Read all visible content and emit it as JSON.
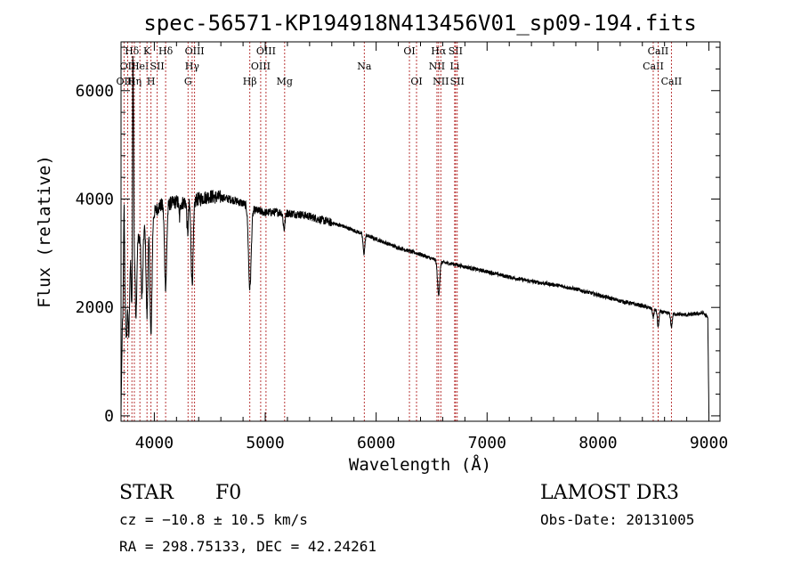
{
  "chart_data": {
    "type": "line",
    "title": "spec-56571-KP194918N413456V01_sp09-194.fits",
    "xlabel": "Wavelength (Å)",
    "ylabel": "Flux (relative)",
    "xlim": [
      3700,
      9100
    ],
    "ylim": [
      -100,
      6900
    ],
    "xticks": [
      4000,
      5000,
      6000,
      7000,
      8000,
      9000
    ],
    "xtick_labels": [
      "4000",
      "5000",
      "6000",
      "7000",
      "8000",
      "9000"
    ],
    "yticks": [
      0,
      2000,
      4000,
      6000
    ],
    "ytick_labels": [
      "0",
      "2000",
      "4000",
      "6000"
    ],
    "continuum": [
      [
        3700,
        50
      ],
      [
        3712,
        1700
      ],
      [
        3730,
        2100
      ],
      [
        3760,
        2500
      ],
      [
        3790,
        3000
      ],
      [
        3820,
        3100
      ],
      [
        3860,
        3300
      ],
      [
        3900,
        3450
      ],
      [
        3950,
        3600
      ],
      [
        4000,
        3750
      ],
      [
        4050,
        3880
      ],
      [
        4100,
        3900
      ],
      [
        4150,
        3920
      ],
      [
        4200,
        3950
      ],
      [
        4250,
        3930
      ],
      [
        4300,
        3950
      ],
      [
        4400,
        4000
      ],
      [
        4500,
        4050
      ],
      [
        4600,
        4030
      ],
      [
        4700,
        3990
      ],
      [
        4800,
        3920
      ],
      [
        4900,
        3800
      ],
      [
        5000,
        3750
      ],
      [
        5100,
        3760
      ],
      [
        5200,
        3740
      ],
      [
        5300,
        3720
      ],
      [
        5400,
        3680
      ],
      [
        5500,
        3620
      ],
      [
        5600,
        3560
      ],
      [
        5700,
        3500
      ],
      [
        5800,
        3420
      ],
      [
        5900,
        3340
      ],
      [
        6000,
        3260
      ],
      [
        6100,
        3180
      ],
      [
        6200,
        3100
      ],
      [
        6300,
        3040
      ],
      [
        6400,
        2980
      ],
      [
        6500,
        2900
      ],
      [
        6600,
        2830
      ],
      [
        6700,
        2800
      ],
      [
        6800,
        2750
      ],
      [
        7000,
        2660
      ],
      [
        7200,
        2560
      ],
      [
        7400,
        2480
      ],
      [
        7600,
        2420
      ],
      [
        7800,
        2340
      ],
      [
        8000,
        2230
      ],
      [
        8200,
        2120
      ],
      [
        8400,
        2030
      ],
      [
        8600,
        1900
      ],
      [
        8800,
        1860
      ],
      [
        8950,
        1900
      ],
      [
        8990,
        1800
      ],
      [
        9000,
        50
      ]
    ],
    "absorption_features": [
      {
        "wave": 3750,
        "depth": 1000,
        "width": 6
      },
      {
        "wave": 3770,
        "depth": 1200,
        "width": 6
      },
      {
        "wave": 3798,
        "depth": 1100,
        "width": 6
      },
      {
        "wave": 3835,
        "depth": 1300,
        "width": 7
      },
      {
        "wave": 3889,
        "depth": 1200,
        "width": 8
      },
      {
        "wave": 3934,
        "depth": 1700,
        "width": 8
      },
      {
        "wave": 3970,
        "depth": 2200,
        "width": 9
      },
      {
        "wave": 4102,
        "depth": 1500,
        "width": 10
      },
      {
        "wave": 4227,
        "depth": 300,
        "width": 5
      },
      {
        "wave": 4300,
        "depth": 600,
        "width": 6
      },
      {
        "wave": 4341,
        "depth": 1500,
        "width": 10
      },
      {
        "wave": 4861,
        "depth": 1500,
        "width": 12
      },
      {
        "wave": 5170,
        "depth": 300,
        "width": 8
      },
      {
        "wave": 5890,
        "depth": 350,
        "width": 8
      },
      {
        "wave": 6563,
        "depth": 620,
        "width": 10
      },
      {
        "wave": 8498,
        "depth": 150,
        "width": 6
      },
      {
        "wave": 8542,
        "depth": 300,
        "width": 7
      },
      {
        "wave": 8662,
        "depth": 250,
        "width": 7
      }
    ],
    "emission_features": [
      {
        "wave": 3727,
        "height": 1800,
        "width": 4
      },
      {
        "wave": 3806,
        "height": 3700,
        "width": 3
      },
      {
        "wave": 3812,
        "height": 2100,
        "width": 3
      }
    ],
    "noise_amplitude": 60,
    "spectral_lines": [
      {
        "wave": 3727,
        "label": "OII",
        "row": 2
      },
      {
        "wave": 3760,
        "label": "OII",
        "row": 1
      },
      {
        "wave": 3798,
        "label": "Hδ",
        "row": 0
      },
      {
        "wave": 3820,
        "label": "Hη",
        "row": 2
      },
      {
        "wave": 3870,
        "label": "HeI",
        "row": 1
      },
      {
        "wave": 3934,
        "label": "K",
        "row": 0
      },
      {
        "wave": 3970,
        "label": "H",
        "row": 2
      },
      {
        "wave": 4026,
        "label": "SII",
        "row": 1
      },
      {
        "wave": 4102,
        "label": "Hδ",
        "row": 0
      },
      {
        "wave": 4304,
        "label": "G",
        "row": 2
      },
      {
        "wave": 4341,
        "label": "Hγ",
        "row": 1
      },
      {
        "wave": 4363,
        "label": "OIII",
        "row": 0
      },
      {
        "wave": 4861,
        "label": "Hβ",
        "row": 2
      },
      {
        "wave": 4959,
        "label": "OIII",
        "row": 1
      },
      {
        "wave": 5007,
        "label": "OIII",
        "row": 0
      },
      {
        "wave": 5175,
        "label": "Mg",
        "row": 2
      },
      {
        "wave": 5893,
        "label": "Na",
        "row": 1
      },
      {
        "wave": 6300,
        "label": "OI",
        "row": 0
      },
      {
        "wave": 6364,
        "label": "OI",
        "row": 2
      },
      {
        "wave": 6548,
        "label": "NII",
        "row": 1
      },
      {
        "wave": 6563,
        "label": "Hα",
        "row": 0
      },
      {
        "wave": 6583,
        "label": "NII",
        "row": 2
      },
      {
        "wave": 6708,
        "label": "Li",
        "row": 1
      },
      {
        "wave": 6716,
        "label": "SII",
        "row": 0
      },
      {
        "wave": 6731,
        "label": "SII",
        "row": 2
      },
      {
        "wave": 8498,
        "label": "CaII",
        "row": 1
      },
      {
        "wave": 8542,
        "label": "CaII",
        "row": 0
      },
      {
        "wave": 8662,
        "label": "CaII",
        "row": 2
      }
    ]
  },
  "info": {
    "object_class": "STAR",
    "subclass": "F0",
    "survey": "LAMOST DR3",
    "redshift": "cz = −10.8 ± 10.5 km/s",
    "obs_date": "Obs-Date: 20131005",
    "coords": "RA = 298.75133, DEC =  42.24261"
  },
  "colors": {
    "line_marker": "#b22222",
    "spectrum": "#000000",
    "text": "#000000"
  }
}
